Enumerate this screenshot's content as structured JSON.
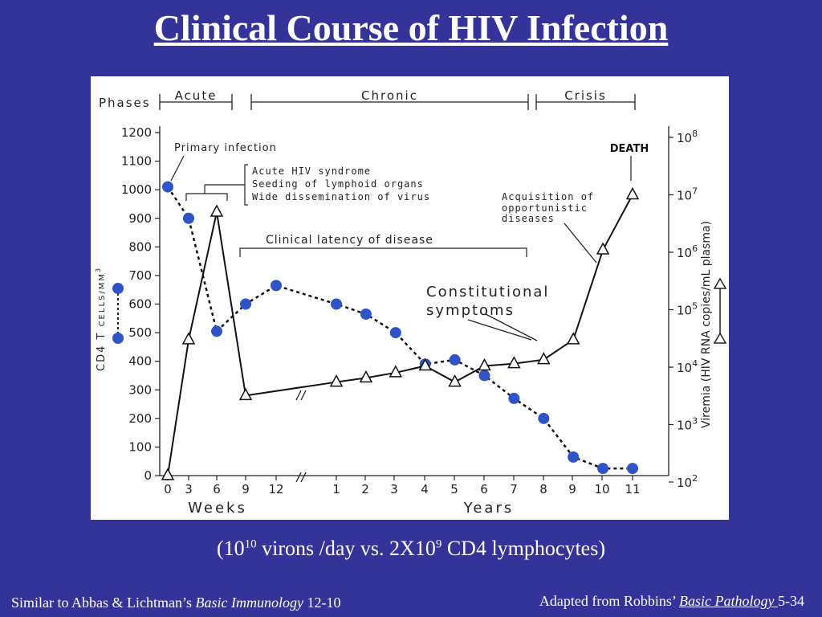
{
  "slide": {
    "title": "Clinical Course of HIV Infection",
    "subtitle_prefix": "(10",
    "subtitle_exp1": "10",
    "subtitle_mid": " virons /day vs. 2X10",
    "subtitle_exp2": "9",
    "subtitle_suffix": " CD4 lymphocytes)",
    "footer_left_prefix": "Similar to Abbas & Lichtman’s ",
    "footer_left_book": "Basic Immunology",
    "footer_left_suffix": " 12-10",
    "footer_right_prefix": "Adapted from Robbins’ ",
    "footer_right_book": "Basic Pathology ",
    "footer_right_suffix": "5-34",
    "background_color": "#333399"
  },
  "chart_data": {
    "type": "line",
    "phases_label": "Phases",
    "phases": [
      "Acute",
      "Chronic",
      "Crisis"
    ],
    "x_positions": [
      "0",
      "3",
      "6",
      "9",
      "12",
      "1",
      "2",
      "3",
      "4",
      "5",
      "6",
      "7",
      "8",
      "9",
      "10",
      "11"
    ],
    "xlabel_weeks": "Weeks",
    "xlabel_years": "Years",
    "ylabel_left": "CD4 T CELLS/MM3",
    "ylabel_left_base": "CD4 T ",
    "ylabel_left_unit": "CELLS/MM",
    "ylabel_left_sup": "3",
    "ylabel_right": "Viremia (HIV RNA copies/mL plasma)",
    "y_left_ticks": [
      "0",
      "100",
      "200",
      "300",
      "400",
      "500",
      "600",
      "700",
      "800",
      "900",
      "1000",
      "1100",
      "1200"
    ],
    "y_left_range": [
      0,
      1200
    ],
    "y_right_ticks": [
      {
        "base": "10",
        "exp": "2",
        "value": 100
      },
      {
        "base": "10",
        "exp": "3",
        "value": 1000
      },
      {
        "base": "10",
        "exp": "4",
        "value": 10000
      },
      {
        "base": "10",
        "exp": "5",
        "value": 100000
      },
      {
        "base": "10",
        "exp": "6",
        "value": 1000000
      },
      {
        "base": "10",
        "exp": "7",
        "value": 10000000
      },
      {
        "base": "10",
        "exp": "8",
        "value": 100000000
      }
    ],
    "y_right_scale": "log",
    "series": [
      {
        "name": "CD4 T cells/mm3",
        "marker": "filled-circle",
        "line": "dotted",
        "color": "#2e54c8",
        "x": [
          "1 wk",
          "3 wk",
          "6 wk",
          "9 wk",
          "12 wk",
          "1 yr",
          "2 yr",
          "3 yr",
          "4 yr",
          "5 yr",
          "6 yr",
          "7 yr",
          "8 yr",
          "9 yr",
          "10 yr",
          "11 yr"
        ],
        "values": [
          1010,
          900,
          505,
          600,
          665,
          600,
          565,
          500,
          390,
          405,
          350,
          270,
          200,
          65,
          25,
          25
        ]
      },
      {
        "name": "Viremia (HIV RNA copies/mL plasma)",
        "marker": "open-triangle",
        "line": "solid",
        "color": "#000000",
        "x": [
          "1 wk",
          "3 wk",
          "6 wk",
          "9 wk",
          "1 yr",
          "2 yr",
          "3 yr",
          "4 yr",
          "5 yr",
          "6 yr",
          "7 yr",
          "8 yr",
          "9 yr",
          "10 yr",
          "11 yr"
        ],
        "values": [
          130,
          30000,
          5000000,
          3200,
          5500,
          6500,
          8000,
          10500,
          5500,
          10500,
          11500,
          13500,
          30000,
          1100000,
          10000000
        ]
      }
    ],
    "annotations": [
      "Primary infection",
      "Acute HIV syndrome",
      "Seeding of lymphoid organs",
      "Wide dissemination of virus",
      "Clinical latency of disease",
      "Constitutional symptoms",
      "Acquisition of opportunistic diseases",
      "DEATH"
    ]
  }
}
